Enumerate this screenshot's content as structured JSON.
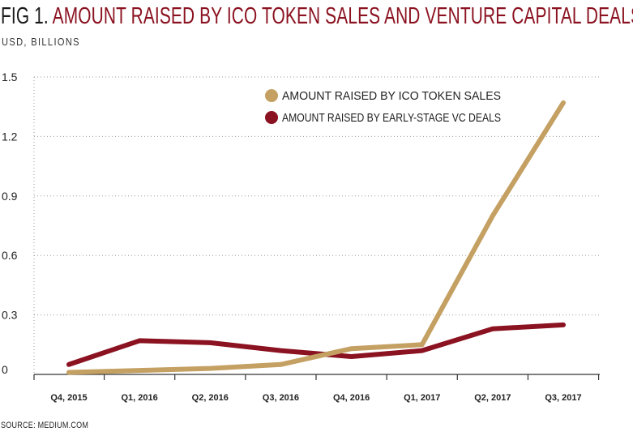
{
  "figure": {
    "label": "FIG 1.",
    "title": "AMOUNT RAISED BY ICO TOKEN SALES AND VENTURE CAPITAL DEALS",
    "subtitle": "USD, BILLIONS",
    "source": "SOURCE: MEDIUM.COM"
  },
  "chart_data": {
    "type": "line",
    "title": "AMOUNT RAISED BY ICO TOKEN SALES AND VENTURE CAPITAL DEALS",
    "ylabel": "USD, BILLIONS",
    "xlabel": "",
    "categories": [
      "Q4, 2015",
      "Q1, 2016",
      "Q2, 2016",
      "Q3, 2016",
      "Q4, 2016",
      "Q1, 2017",
      "Q2, 2017",
      "Q3, 2017"
    ],
    "ylim": [
      0,
      1.5
    ],
    "yticks": [
      "0",
      "0.3",
      "0.6",
      "0.9",
      "1.2",
      "1.5"
    ],
    "grid": "horizontal dotted",
    "legend_position": "top-right",
    "series": [
      {
        "name": "AMOUNT RAISED BY ICO TOKEN SALES",
        "color": "#c4a062",
        "values": [
          0.01,
          0.02,
          0.03,
          0.05,
          0.13,
          0.15,
          0.8,
          1.37
        ]
      },
      {
        "name": "AMOUNT RAISED BY EARLY-STAGE VC DEALS",
        "color": "#8b1220",
        "values": [
          0.05,
          0.17,
          0.16,
          0.12,
          0.09,
          0.12,
          0.23,
          0.25
        ]
      }
    ]
  }
}
